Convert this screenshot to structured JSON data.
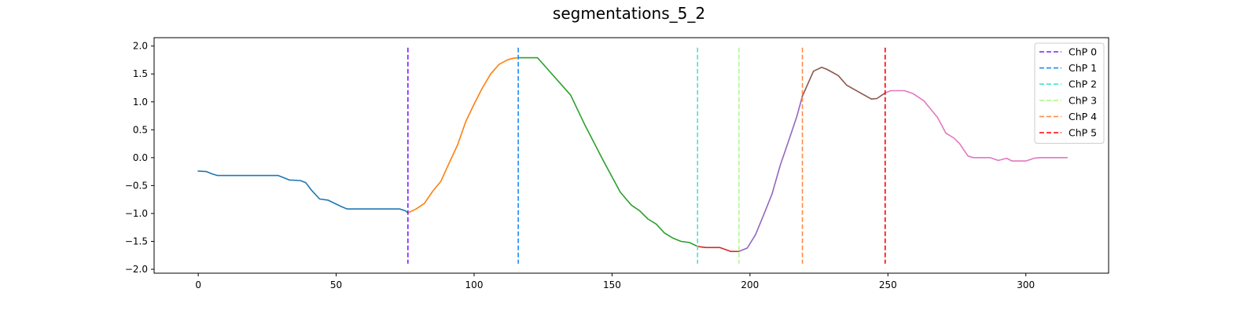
{
  "chart_data": {
    "type": "line",
    "title": "segmentations_5_2",
    "xlabel": "",
    "ylabel": "",
    "xlim": [
      -16,
      330
    ],
    "ylim": [
      -2.07,
      2.15
    ],
    "grid": false,
    "legend_position": "top-right",
    "x_ticks": [
      {
        "value": 0,
        "label": "0"
      },
      {
        "value": 50,
        "label": "50"
      },
      {
        "value": 100,
        "label": "100"
      },
      {
        "value": 150,
        "label": "150"
      },
      {
        "value": 200,
        "label": "200"
      },
      {
        "value": 250,
        "label": "250"
      },
      {
        "value": 300,
        "label": "300"
      }
    ],
    "y_ticks": [
      {
        "value": 2.0,
        "label": "2.0"
      },
      {
        "value": 1.5,
        "label": "1.5"
      },
      {
        "value": 1.0,
        "label": "1.0"
      },
      {
        "value": 0.5,
        "label": "0.5"
      },
      {
        "value": 0.0,
        "label": "0.0"
      },
      {
        "value": -0.5,
        "label": "−0.5"
      },
      {
        "value": -1.0,
        "label": "−1.0"
      },
      {
        "value": -1.5,
        "label": "−1.5"
      },
      {
        "value": -2.0,
        "label": "−2.0"
      }
    ],
    "segments": [
      {
        "color": "#1f77b4",
        "points": [
          [
            0,
            -0.24
          ],
          [
            3,
            -0.25
          ],
          [
            5,
            -0.29
          ],
          [
            7,
            -0.32
          ],
          [
            29,
            -0.32
          ],
          [
            31,
            -0.36
          ],
          [
            33,
            -0.4
          ],
          [
            37,
            -0.41
          ],
          [
            39,
            -0.45
          ],
          [
            41,
            -0.58
          ],
          [
            44,
            -0.74
          ],
          [
            47,
            -0.76
          ],
          [
            52,
            -0.88
          ],
          [
            54,
            -0.92
          ],
          [
            73,
            -0.92
          ],
          [
            75,
            -0.95
          ],
          [
            76,
            -0.99
          ]
        ]
      },
      {
        "color": "#ff7f0e",
        "points": [
          [
            76,
            -0.99
          ],
          [
            79,
            -0.92
          ],
          [
            82,
            -0.82
          ],
          [
            85,
            -0.6
          ],
          [
            88,
            -0.42
          ],
          [
            90,
            -0.2
          ],
          [
            94,
            0.23
          ],
          [
            97,
            0.65
          ],
          [
            100,
            0.96
          ],
          [
            103,
            1.25
          ],
          [
            106,
            1.5
          ],
          [
            109,
            1.67
          ],
          [
            112,
            1.75
          ],
          [
            114,
            1.78
          ],
          [
            116,
            1.79
          ]
        ]
      },
      {
        "color": "#2ca02c",
        "points": [
          [
            116,
            1.79
          ],
          [
            123,
            1.79
          ],
          [
            135,
            1.12
          ],
          [
            140,
            0.6
          ],
          [
            147,
            -0.07
          ],
          [
            153,
            -0.62
          ],
          [
            157,
            -0.85
          ],
          [
            160,
            -0.95
          ],
          [
            163,
            -1.1
          ],
          [
            166,
            -1.19
          ],
          [
            169,
            -1.35
          ],
          [
            172,
            -1.44
          ],
          [
            175,
            -1.5
          ],
          [
            178,
            -1.52
          ],
          [
            181,
            -1.59
          ]
        ]
      },
      {
        "color": "#d62728",
        "points": [
          [
            181,
            -1.59
          ],
          [
            184,
            -1.61
          ],
          [
            189,
            -1.61
          ],
          [
            193,
            -1.68
          ],
          [
            196,
            -1.68
          ]
        ]
      },
      {
        "color": "#9467bd",
        "points": [
          [
            196,
            -1.68
          ],
          [
            199,
            -1.62
          ],
          [
            202,
            -1.38
          ],
          [
            205,
            -1.02
          ],
          [
            208,
            -0.65
          ],
          [
            211,
            -0.13
          ],
          [
            214,
            0.3
          ],
          [
            217,
            0.74
          ],
          [
            219,
            1.1
          ]
        ]
      },
      {
        "color": "#8c564b",
        "points": [
          [
            219,
            1.1
          ],
          [
            223,
            1.55
          ],
          [
            226,
            1.62
          ],
          [
            228,
            1.58
          ],
          [
            232,
            1.47
          ],
          [
            235,
            1.3
          ],
          [
            244,
            1.05
          ],
          [
            246,
            1.06
          ],
          [
            249,
            1.16
          ]
        ]
      },
      {
        "color": "#e377c2",
        "points": [
          [
            249,
            1.16
          ],
          [
            251,
            1.2
          ],
          [
            256,
            1.2
          ],
          [
            259,
            1.15
          ],
          [
            263,
            1.02
          ],
          [
            268,
            0.72
          ],
          [
            271,
            0.44
          ],
          [
            274,
            0.35
          ],
          [
            276,
            0.25
          ],
          [
            279,
            0.03
          ],
          [
            281,
            0.0
          ],
          [
            287,
            0.0
          ],
          [
            290,
            -0.05
          ],
          [
            293,
            -0.01
          ],
          [
            295,
            -0.06
          ],
          [
            300,
            -0.06
          ],
          [
            303,
            -0.01
          ],
          [
            305,
            0.0
          ],
          [
            315,
            0.0
          ]
        ]
      }
    ],
    "changepoints": [
      {
        "name": "ChP 0",
        "x": 76,
        "color": "#7f1fff"
      },
      {
        "name": "ChP 1",
        "x": 116,
        "color": "#1c8cf3"
      },
      {
        "name": "ChP 2",
        "x": 181,
        "color": "#45e3d3"
      },
      {
        "name": "ChP 3",
        "x": 196,
        "color": "#b0f98c"
      },
      {
        "name": "ChP 4",
        "x": 219,
        "color": "#ff8c45"
      },
      {
        "name": "ChP 5",
        "x": 249,
        "color": "#ff0000"
      }
    ],
    "changepoint_range": [
      -1.9,
      1.97
    ]
  }
}
